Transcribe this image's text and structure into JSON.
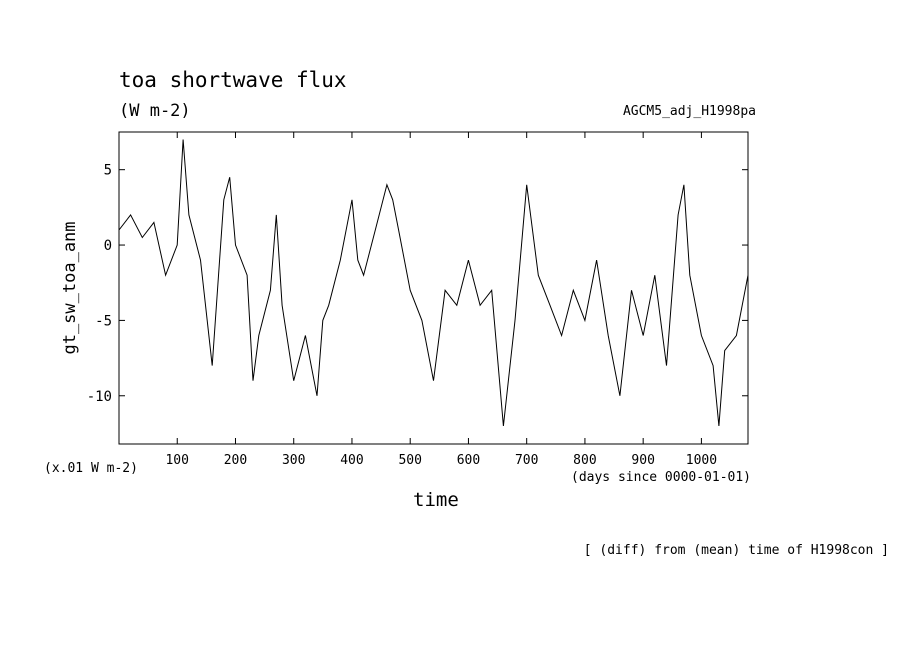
{
  "chart_data": {
    "type": "line",
    "title": "toa shortwave flux",
    "subtitle": "(W m-2)",
    "dataset": "AGCM5_adj_H1998pa",
    "ylabel": "gt_sw_toa_anm",
    "xlabel": "time",
    "x_units": "(days since 0000-01-01)",
    "y_scale_note": "(x.01 W m-2)",
    "footnote": "[ (diff) from (mean) time of H1998con ]",
    "xlim": [
      0,
      1080
    ],
    "ylim": [
      -13.2,
      7.5
    ],
    "x_ticks": [
      100,
      200,
      300,
      400,
      500,
      600,
      700,
      800,
      900,
      1000
    ],
    "y_ticks": [
      5,
      0,
      -5,
      -10
    ],
    "line_color": "#000000",
    "series": [
      {
        "x": [
          0,
          20,
          40,
          60,
          80,
          100,
          110,
          120,
          140,
          160,
          180,
          190,
          200,
          220,
          230,
          240,
          260,
          270,
          280,
          300,
          320,
          340,
          350,
          360,
          380,
          400,
          410,
          420,
          440,
          460,
          470,
          480,
          500,
          520,
          540,
          560,
          580,
          600,
          620,
          640,
          660,
          680,
          700,
          720,
          740,
          760,
          780,
          800,
          820,
          840,
          860,
          880,
          900,
          920,
          940,
          960,
          970,
          980,
          1000,
          1020,
          1030,
          1040,
          1060,
          1080
        ],
        "values": [
          1,
          2,
          0.5,
          1.5,
          -2,
          0,
          7,
          2,
          -1,
          -8,
          3,
          4.5,
          0,
          -2,
          -9,
          -6,
          -3,
          2,
          -4,
          -9,
          -6,
          -10,
          -5,
          -4,
          -1,
          3,
          -1,
          -2,
          1,
          4,
          3,
          1,
          -3,
          -5,
          -9,
          -3,
          -4,
          -1,
          -4,
          -3,
          -12,
          -5,
          4,
          -2,
          -4,
          -6,
          -3,
          -5,
          -1,
          -6,
          -10,
          -3,
          -6,
          -2,
          -8,
          2,
          4,
          -2,
          -6,
          -8,
          -12,
          -7,
          -6,
          -2
        ]
      }
    ]
  }
}
